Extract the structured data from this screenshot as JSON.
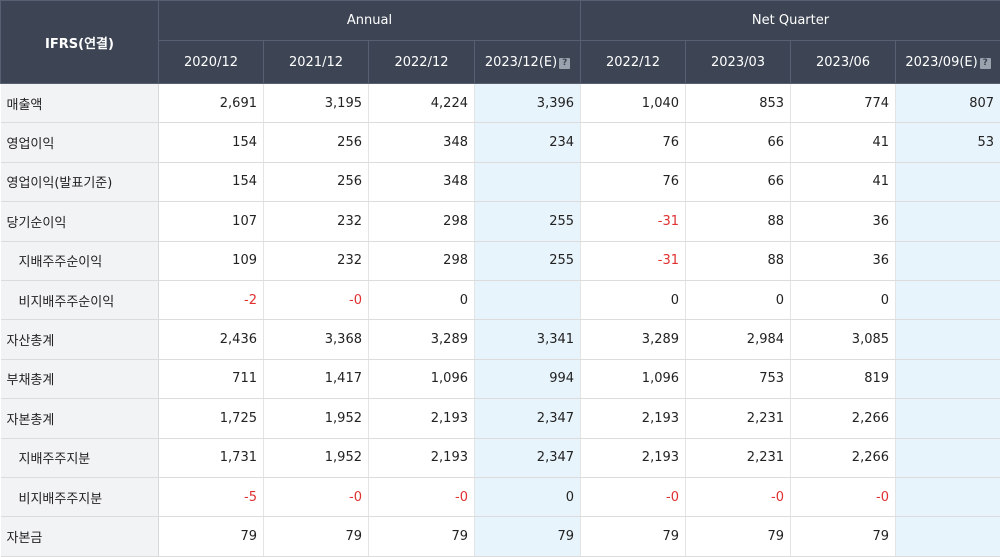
{
  "header": {
    "corner_label": "IFRS(연결)",
    "group_annual": "Annual",
    "group_quarter": "Net Quarter",
    "columns": [
      {
        "label": "2020/12",
        "est": false
      },
      {
        "label": "2021/12",
        "est": false
      },
      {
        "label": "2022/12",
        "est": false
      },
      {
        "label": "2023/12(E)",
        "est": true
      },
      {
        "label": "2022/12",
        "est": false
      },
      {
        "label": "2023/03",
        "est": false
      },
      {
        "label": "2023/06",
        "est": false
      },
      {
        "label": "2023/09(E)",
        "est": true
      }
    ],
    "est_icon_glyph": "?"
  },
  "rows": [
    {
      "label": "매출액",
      "sub": false,
      "values": [
        "2,691",
        "3,195",
        "4,224",
        "3,396",
        "1,040",
        "853",
        "774",
        "807"
      ]
    },
    {
      "label": "영업이익",
      "sub": false,
      "values": [
        "154",
        "256",
        "348",
        "234",
        "76",
        "66",
        "41",
        "53"
      ]
    },
    {
      "label": "영업이익(발표기준)",
      "sub": false,
      "values": [
        "154",
        "256",
        "348",
        "",
        "76",
        "66",
        "41",
        ""
      ]
    },
    {
      "label": "당기순이익",
      "sub": false,
      "values": [
        "107",
        "232",
        "298",
        "255",
        "-31",
        "88",
        "36",
        ""
      ]
    },
    {
      "label": "지배주주순이익",
      "sub": true,
      "values": [
        "109",
        "232",
        "298",
        "255",
        "-31",
        "88",
        "36",
        ""
      ]
    },
    {
      "label": "비지배주주순이익",
      "sub": true,
      "values": [
        "-2",
        "-0",
        "0",
        "",
        "0",
        "0",
        "0",
        ""
      ]
    },
    {
      "label": "자산총계",
      "sub": false,
      "values": [
        "2,436",
        "3,368",
        "3,289",
        "3,341",
        "3,289",
        "2,984",
        "3,085",
        ""
      ]
    },
    {
      "label": "부채총계",
      "sub": false,
      "values": [
        "711",
        "1,417",
        "1,096",
        "994",
        "1,096",
        "753",
        "819",
        ""
      ]
    },
    {
      "label": "자본총계",
      "sub": false,
      "values": [
        "1,725",
        "1,952",
        "2,193",
        "2,347",
        "2,193",
        "2,231",
        "2,266",
        ""
      ]
    },
    {
      "label": "지배주주지분",
      "sub": true,
      "values": [
        "1,731",
        "1,952",
        "2,193",
        "2,347",
        "2,193",
        "2,231",
        "2,266",
        ""
      ]
    },
    {
      "label": "비지배주주지분",
      "sub": true,
      "values": [
        "-5",
        "-0",
        "-0",
        "0",
        "-0",
        "-0",
        "-0",
        ""
      ]
    },
    {
      "label": "자본금",
      "sub": false,
      "values": [
        "79",
        "79",
        "79",
        "79",
        "79",
        "79",
        "79",
        ""
      ]
    }
  ],
  "colors": {
    "header_bg": "#3d4554",
    "label_bg": "#f2f3f5",
    "estimate_bg": "#e8f4fb",
    "negative_text": "#e03030"
  }
}
